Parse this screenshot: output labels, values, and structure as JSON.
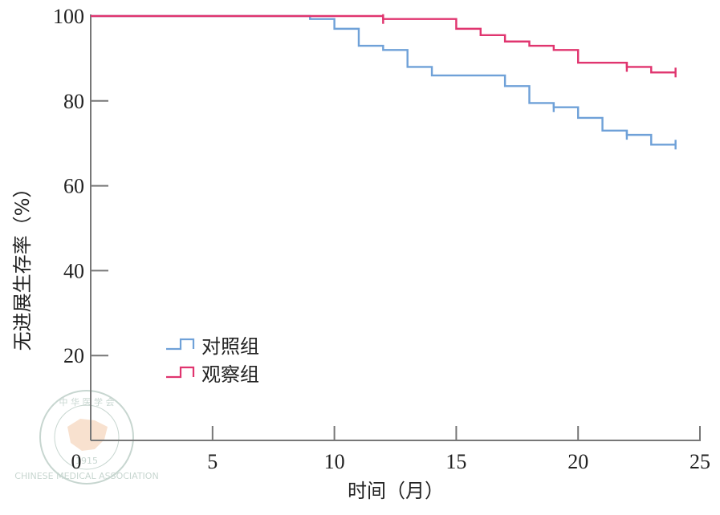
{
  "chart_data": {
    "type": "line",
    "xlabel": "时间（月）",
    "ylabel": "无进展生存率（%）",
    "xlim": [
      0,
      25
    ],
    "ylim": [
      0,
      100
    ],
    "xticks": [
      "0",
      "5",
      "10",
      "15",
      "20",
      "25"
    ],
    "yticks": [
      "20",
      "40",
      "60",
      "80",
      "100"
    ],
    "legend_position": "lower-left",
    "grid": false,
    "series": [
      {
        "name": "对照组",
        "color": "#6fa1d8",
        "x": [
          0,
          9,
          10,
          11,
          12,
          13,
          14,
          17,
          18,
          19,
          20,
          21,
          22,
          23,
          24
        ],
        "y": [
          100,
          99.3,
          97,
          93,
          92,
          88,
          86,
          83.5,
          79.5,
          78.5,
          76,
          73,
          72,
          69.7,
          69.7
        ],
        "censored": [
          [
            24,
            69.7
          ],
          [
            22,
            72
          ],
          [
            19,
            78.5
          ]
        ]
      },
      {
        "name": "观察组",
        "color": "#e0356f",
        "x": [
          0,
          12,
          15,
          16,
          17,
          18,
          19,
          20,
          22,
          23,
          24
        ],
        "y": [
          100,
          99.3,
          97,
          95.5,
          94,
          93,
          92,
          89,
          88,
          86.7,
          86.7
        ],
        "censored": [
          [
            24,
            86.7
          ],
          [
            22,
            88
          ],
          [
            12,
            99.3
          ]
        ]
      }
    ]
  },
  "watermark": {
    "top_text": "中 华 医 学 会",
    "bottom_text": "CHINESE MEDICAL ASSOCIATION",
    "year": "1915"
  }
}
